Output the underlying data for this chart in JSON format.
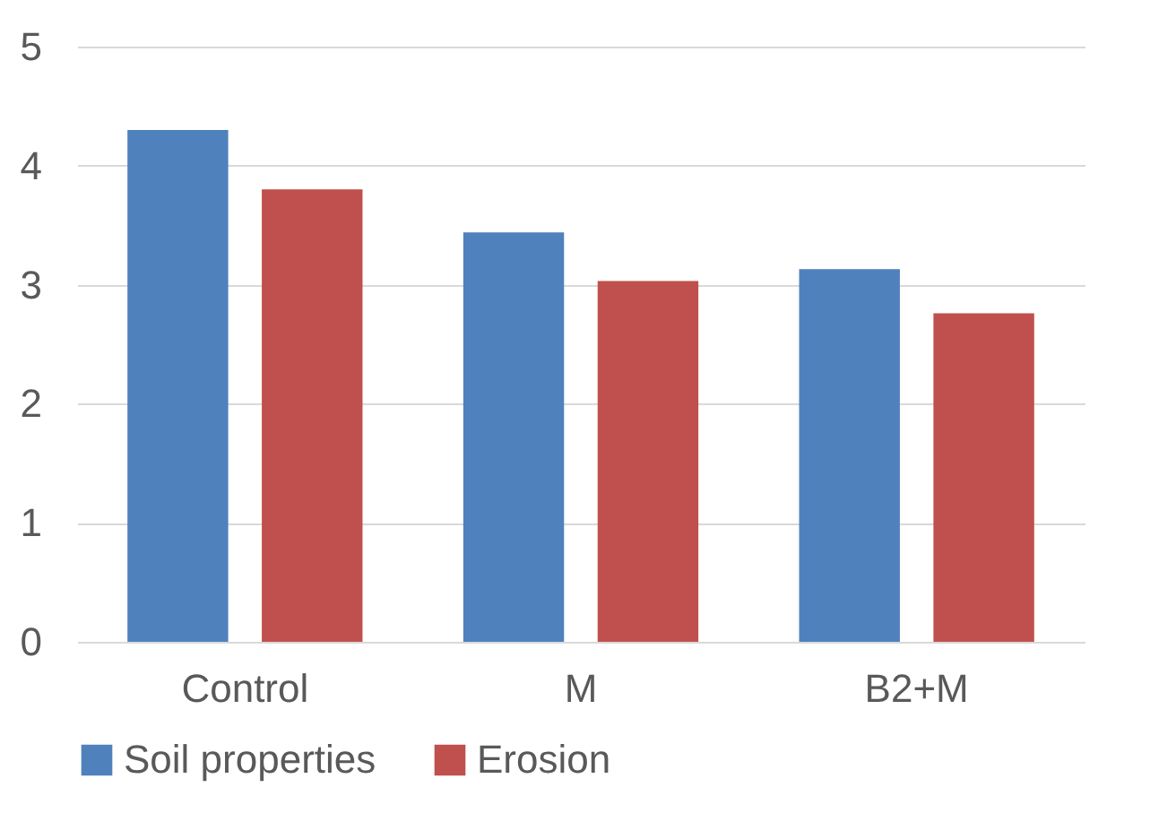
{
  "chart_data": {
    "type": "bar",
    "categories": [
      "Control",
      "M",
      "B2+M"
    ],
    "series": [
      {
        "name": "Soil properties",
        "color": "#4f81bd",
        "values": [
          4.3,
          3.44,
          3.13
        ]
      },
      {
        "name": "Erosion",
        "color": "#c0504d",
        "values": [
          3.8,
          3.03,
          2.76
        ]
      }
    ],
    "ylim": [
      0,
      5
    ],
    "yticks": [
      0,
      1,
      2,
      3,
      4,
      5
    ],
    "grid": "y",
    "legend": "bottom"
  }
}
